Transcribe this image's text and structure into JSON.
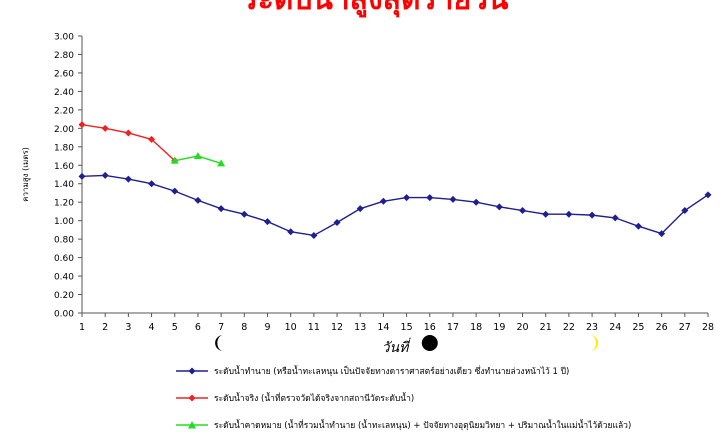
{
  "chart_data": {
    "type": "line",
    "title": "ระดับน้ำสูงสุดรายวัน",
    "xlabel": "วันที่",
    "ylabel": "ความสูง (เมตร)",
    "x": [
      1,
      2,
      3,
      4,
      5,
      6,
      7,
      8,
      9,
      10,
      11,
      12,
      13,
      14,
      15,
      16,
      17,
      18,
      19,
      20,
      21,
      22,
      23,
      24,
      25,
      26,
      27,
      28
    ],
    "xlim": [
      1,
      28
    ],
    "ylim": [
      0,
      3.0
    ],
    "yticks": [
      "0.00",
      "0.20",
      "0.40",
      "0.60",
      "0.80",
      "1.00",
      "1.20",
      "1.40",
      "1.60",
      "1.80",
      "2.00",
      "2.20",
      "2.40",
      "2.60",
      "2.80",
      "3.00"
    ],
    "grid": false,
    "legend_position": "bottom",
    "series": [
      {
        "name": "ระดับน้ำทำนาย (หรือน้ำทะเลหนุน เป็นปัจจัยทางดาราศาสตร์อย่างเดียว ซึ่งทำนายล่วงหน้าไว้ 1 ปี)",
        "color": "#1f1f8f",
        "marker": "diamond",
        "x": [
          1,
          2,
          3,
          4,
          5,
          6,
          7,
          8,
          9,
          10,
          11,
          12,
          13,
          14,
          15,
          16,
          17,
          18,
          19,
          20,
          21,
          22,
          23,
          24,
          25,
          26,
          27,
          28
        ],
        "values": [
          1.48,
          1.49,
          1.45,
          1.4,
          1.32,
          1.22,
          1.13,
          1.07,
          0.99,
          0.88,
          0.84,
          0.98,
          1.13,
          1.21,
          1.25,
          1.25,
          1.23,
          1.2,
          1.15,
          1.11,
          1.07,
          1.07,
          1.06,
          1.03,
          0.94,
          0.86,
          1.11,
          1.28
        ]
      },
      {
        "name": "ระดับน้ำจริง (น้ำที่ตรวจวัดได้จริงจากสถานีวัดระดับน้ำ)",
        "color": "#ee2222",
        "marker": "diamond",
        "x": [
          1,
          2,
          3,
          4,
          5
        ],
        "values": [
          2.04,
          2.0,
          1.95,
          1.88,
          1.65
        ]
      },
      {
        "name": "ระดับน้ำคาดหมาย (น้ำที่รวมน้ำทำนาย (น้ำทะเลหนุน) + ปัจจัยทางอุตุนิยมวิทยา + ปริมาณน้ำในแม่น้ำไว้ด้วยแล้ว)",
        "color": "#22dd22",
        "marker": "triangle",
        "x": [
          5,
          6,
          7
        ],
        "values": [
          1.65,
          1.7,
          1.62
        ]
      }
    ],
    "moon_phases": [
      {
        "day": 7,
        "icon": "last-quarter-moon-icon",
        "color": "#000000"
      },
      {
        "day": 16,
        "icon": "new-moon-icon",
        "color": "#000000"
      },
      {
        "day": 23,
        "icon": "first-quarter-moon-icon",
        "color": "#ffee00"
      }
    ]
  }
}
